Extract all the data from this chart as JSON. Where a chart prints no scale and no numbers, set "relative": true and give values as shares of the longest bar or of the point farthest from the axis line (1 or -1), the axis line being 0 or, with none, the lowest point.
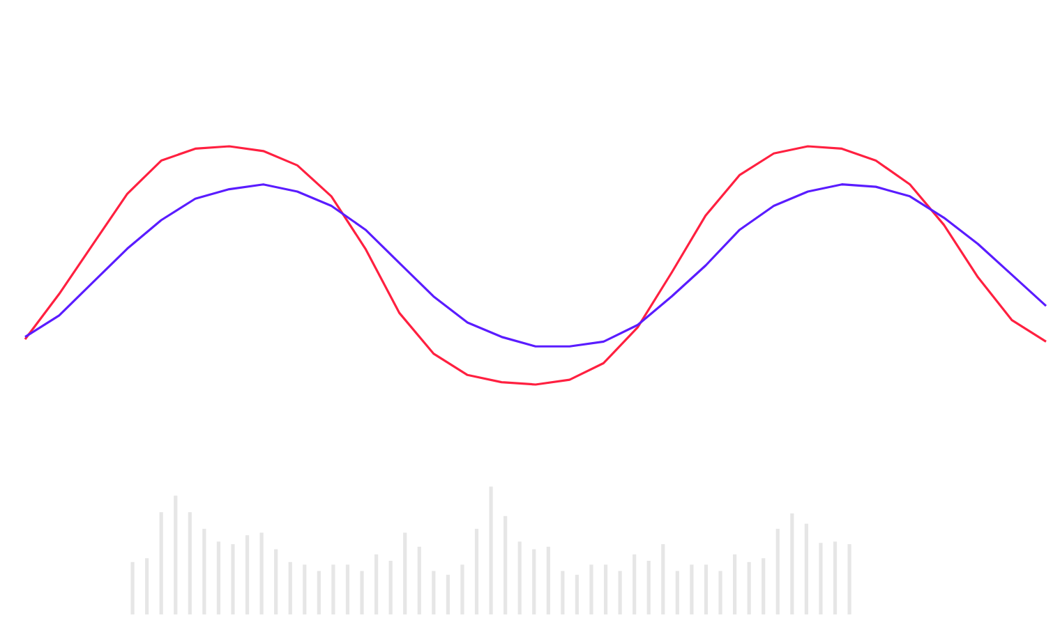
{
  "chart_data": [
    {
      "type": "line",
      "relative": true,
      "categories": [
        null,
        null,
        null,
        null,
        null,
        null,
        null,
        null,
        null,
        null,
        null,
        null,
        null,
        null,
        null,
        null,
        null,
        null,
        null,
        null,
        null,
        null,
        null,
        null,
        null,
        null,
        null,
        null,
        null,
        null,
        null
      ],
      "series": [
        {
          "color": "#ff2040",
          "values": [
            0.19,
            0.38,
            0.59,
            0.8,
            0.94,
            0.99,
            1,
            0.98,
            0.92,
            0.79,
            0.57,
            0.3,
            0.13,
            0.04,
            0.01,
            0,
            0.02,
            0.09,
            0.24,
            0.47,
            0.71,
            0.88,
            0.97,
            1,
            0.99,
            0.94,
            0.84,
            0.67,
            0.45,
            0.27,
            0.18
          ]
        },
        {
          "color": "#5a1cff",
          "values": [
            0.2,
            0.29,
            0.43,
            0.57,
            0.69,
            0.78,
            0.82,
            0.84,
            0.81,
            0.75,
            0.65,
            0.51,
            0.37,
            0.26,
            0.2,
            0.16,
            0.16,
            0.18,
            0.25,
            0.37,
            0.5,
            0.65,
            0.75,
            0.81,
            0.84,
            0.83,
            0.79,
            0.7,
            0.59,
            0.46,
            0.33
          ]
        }
      ]
    },
    {
      "type": "bar",
      "relative": true,
      "color": "#e6e6e6",
      "categories": [
        null,
        null,
        null,
        null,
        null,
        null,
        null,
        null,
        null,
        null,
        null,
        null,
        null,
        null,
        null,
        null,
        null,
        null,
        null,
        null,
        null,
        null,
        null,
        null,
        null,
        null,
        null,
        null,
        null,
        null,
        null,
        null,
        null,
        null,
        null,
        null,
        null,
        null,
        null,
        null,
        null,
        null,
        null,
        null,
        null,
        null,
        null,
        null,
        null,
        null,
        null
      ],
      "values": [
        0.41,
        0.44,
        0.8,
        0.93,
        0.8,
        0.67,
        0.57,
        0.55,
        0.62,
        0.64,
        0.51,
        0.41,
        0.39,
        0.34,
        0.39,
        0.39,
        0.34,
        0.47,
        0.42,
        0.64,
        0.53,
        0.34,
        0.31,
        0.39,
        0.67,
        1,
        0.77,
        0.57,
        0.51,
        0.53,
        0.34,
        0.31,
        0.39,
        0.39,
        0.34,
        0.47,
        0.42,
        0.55,
        0.34,
        0.39,
        0.39,
        0.34,
        0.47,
        0.41,
        0.44,
        0.67,
        0.79,
        0.71,
        0.56,
        0.57,
        0.55
      ]
    }
  ]
}
